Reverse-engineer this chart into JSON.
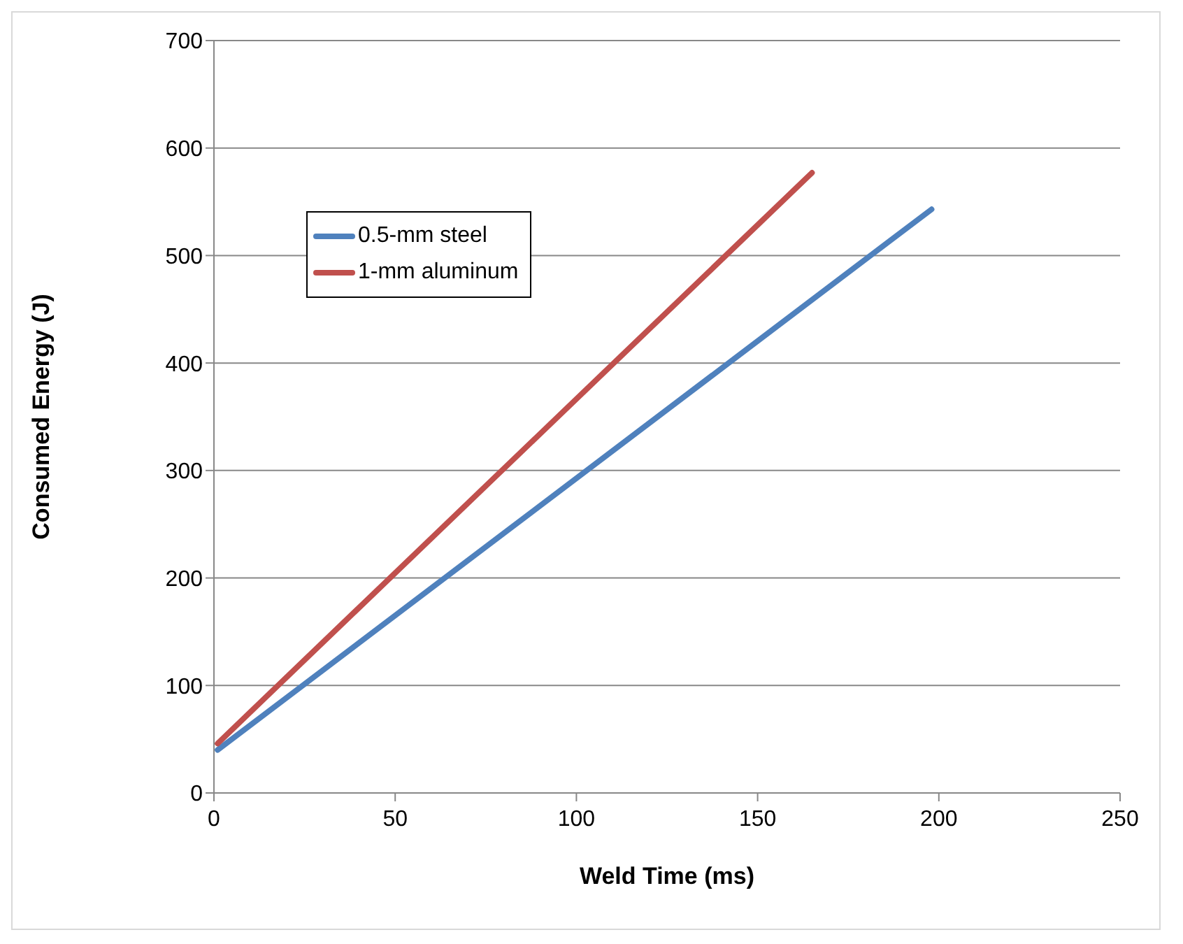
{
  "chart_data": {
    "type": "line",
    "xlabel": "Weld Time (ms)",
    "ylabel": "Consumed Energy (J)",
    "xlim": [
      0,
      250
    ],
    "xticks": [
      0,
      50,
      100,
      150,
      200,
      250
    ],
    "ylim": [
      0,
      700
    ],
    "yticks": [
      0,
      100,
      200,
      300,
      400,
      500,
      600,
      700
    ],
    "grid": "y",
    "legend": "top left",
    "marker": "none",
    "line_style": "solid",
    "series": [
      {
        "name": "0.5-mm steel",
        "color": "#4f81bd",
        "x": [
          1,
          198
        ],
        "values": [
          40,
          543
        ]
      },
      {
        "name": "1-mm aluminum",
        "color": "#c0504d",
        "x": [
          1,
          165
        ],
        "values": [
          46,
          577
        ]
      }
    ]
  }
}
